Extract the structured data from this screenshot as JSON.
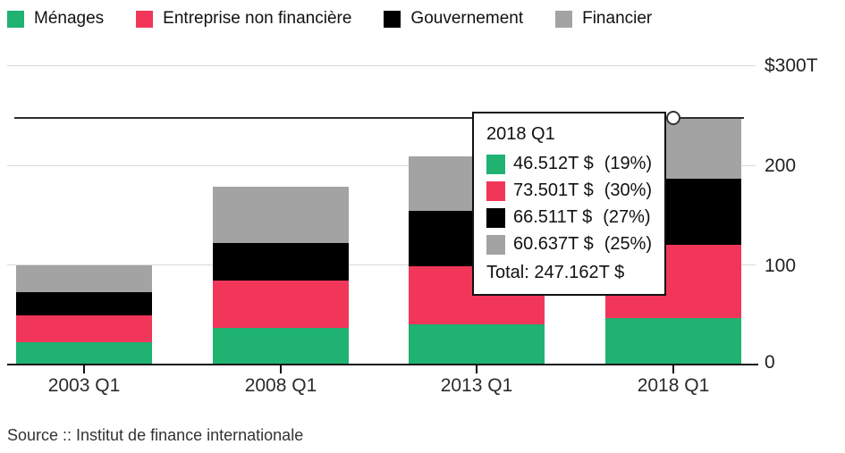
{
  "legend": {
    "items": [
      {
        "label": "Ménages",
        "color": "#1fb271"
      },
      {
        "label": "Entreprise non financière",
        "color": "#f2365a"
      },
      {
        "label": "Gouvernement",
        "color": "#000000"
      },
      {
        "label": "Financier",
        "color": "#a3a3a3"
      }
    ]
  },
  "y_axis": {
    "labels": [
      "$300T",
      "200",
      "100",
      "0"
    ]
  },
  "x_axis": {
    "labels": [
      "2003 Q1",
      "2008 Q1",
      "2013 Q1",
      "2018 Q1"
    ]
  },
  "tooltip": {
    "title": "2018 Q1",
    "rows": [
      {
        "value": "46.512T $",
        "pct": "(19%)",
        "color": "#1fb271"
      },
      {
        "value": "73.501T $",
        "pct": "(30%)",
        "color": "#f2365a"
      },
      {
        "value": "66.511T $",
        "pct": "(27%)",
        "color": "#000000"
      },
      {
        "value": "60.637T $",
        "pct": "(25%)",
        "color": "#a3a3a3"
      }
    ],
    "total": "Total: 247.162T $"
  },
  "source": "Source :: Institut de finance internationale",
  "colors": {
    "gridline": "#d9d9d9",
    "axis": "#111111",
    "reference_line": "#2e2e2e"
  },
  "chart_data": {
    "type": "bar",
    "stacked": true,
    "categories": [
      "2003 Q1",
      "2008 Q1",
      "2013 Q1",
      "2018 Q1"
    ],
    "series": [
      {
        "name": "Ménages",
        "color": "#1fb271",
        "values": [
          22.4,
          37.0,
          40.5,
          46.512
        ]
      },
      {
        "name": "Entreprise non financière",
        "color": "#f2365a",
        "values": [
          27.0,
          47.5,
          58.3,
          73.501
        ]
      },
      {
        "name": "Gouvernement",
        "color": "#000000",
        "values": [
          23.3,
          37.0,
          55.6,
          66.511
        ]
      },
      {
        "name": "Financier",
        "color": "#a3a3a3",
        "values": [
          27.0,
          56.5,
          54.7,
          60.637
        ]
      }
    ],
    "totals": [
      99.7,
      178.0,
      209.1,
      247.162
    ],
    "ylabel_unit": "T $",
    "ylim": [
      0,
      300
    ],
    "yticks": [
      0,
      100,
      200,
      300
    ],
    "reference_line": 247.162,
    "hover_point": {
      "category": "2018 Q1",
      "value": 247.162
    },
    "legend_position": "top",
    "grid": true
  }
}
